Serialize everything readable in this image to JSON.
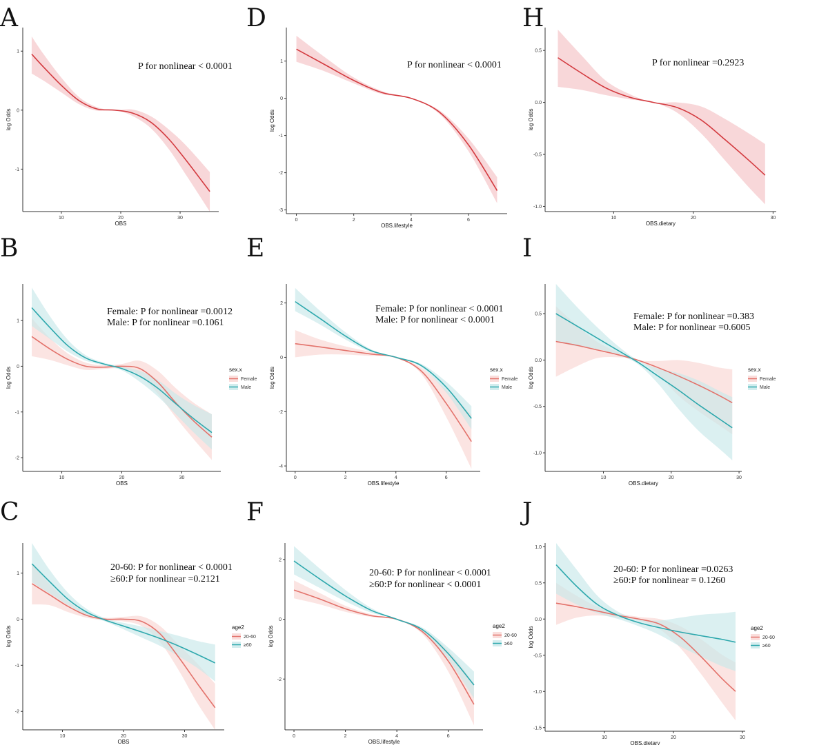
{
  "colors": {
    "overall": "#d33a3f",
    "overall_band": "#f5c2c5",
    "group1": "#e3726b",
    "group1_band": "#f9d6d3",
    "group2": "#2ea8ad",
    "group2_band": "#c8e8ea"
  },
  "chart_data": [
    {
      "id": "A",
      "letter": "A",
      "type": "line",
      "xlabel": "OBS",
      "ylabel": "log Odds",
      "xlim": [
        3.5,
        36.5
      ],
      "ylim": [
        -1.72,
        1.4
      ],
      "xticks": [
        10,
        20,
        30
      ],
      "yticks": [
        1,
        0,
        -1
      ],
      "annotations": [
        "P for nonlinear < 0.0001"
      ],
      "series": [
        {
          "color_key": "overall",
          "x": [
            5,
            7,
            10,
            13,
            16,
            19,
            22,
            25,
            28,
            31,
            35
          ],
          "y": [
            0.95,
            0.73,
            0.42,
            0.16,
            0.02,
            0.0,
            -0.05,
            -0.2,
            -0.48,
            -0.85,
            -1.38
          ],
          "lo": [
            0.62,
            0.5,
            0.3,
            0.1,
            -0.01,
            0.0,
            -0.1,
            -0.3,
            -0.65,
            -1.1,
            -1.72
          ],
          "hi": [
            1.25,
            0.95,
            0.55,
            0.22,
            0.05,
            0.0,
            0.01,
            -0.1,
            -0.32,
            -0.6,
            -1.05
          ]
        }
      ]
    },
    {
      "id": "D",
      "letter": "D",
      "type": "line",
      "xlabel": "OBS.lifestyle",
      "ylabel": "log Odds",
      "xlim": [
        -0.35,
        7.35
      ],
      "ylim": [
        -3.1,
        1.9
      ],
      "xticks": [
        0,
        2,
        4,
        6
      ],
      "yticks": [
        1,
        0,
        -1,
        -2,
        -3
      ],
      "annotations": [
        "P for nonlinear < 0.0001"
      ],
      "series": [
        {
          "color_key": "overall",
          "x": [
            0,
            1,
            2,
            3,
            4,
            5,
            6,
            7
          ],
          "y": [
            1.32,
            0.9,
            0.48,
            0.15,
            0.0,
            -0.38,
            -1.25,
            -2.48
          ],
          "lo": [
            0.98,
            0.72,
            0.4,
            0.11,
            0.0,
            -0.43,
            -1.42,
            -2.82
          ],
          "hi": [
            1.68,
            1.1,
            0.56,
            0.19,
            0.0,
            -0.33,
            -1.08,
            -2.12
          ]
        }
      ]
    },
    {
      "id": "H",
      "letter": "H",
      "type": "line",
      "xlabel": "OBS.dietary",
      "ylabel": "log Odds",
      "xlim": [
        1.4,
        30.4
      ],
      "ylim": [
        -1.05,
        0.72
      ],
      "xticks": [
        10,
        20,
        30
      ],
      "yticks": [
        0.5,
        0.0,
        -0.5,
        -1.0
      ],
      "annotations": [
        "P for nonlinear =0.2923"
      ],
      "series": [
        {
          "color_key": "overall",
          "x": [
            3,
            6,
            9,
            12,
            15,
            18,
            21,
            24,
            27,
            29
          ],
          "y": [
            0.43,
            0.28,
            0.14,
            0.05,
            0.0,
            -0.05,
            -0.17,
            -0.36,
            -0.56,
            -0.7
          ],
          "lo": [
            0.15,
            0.12,
            0.07,
            0.03,
            0.0,
            -0.1,
            -0.3,
            -0.56,
            -0.82,
            -0.98
          ],
          "hi": [
            0.7,
            0.45,
            0.21,
            0.08,
            0.0,
            0.0,
            -0.04,
            -0.16,
            -0.3,
            -0.4
          ]
        }
      ]
    },
    {
      "id": "B",
      "letter": "B",
      "type": "line",
      "xlabel": "OBS",
      "ylabel": "log Odds",
      "xlim": [
        3.5,
        36.5
      ],
      "ylim": [
        -2.3,
        1.8
      ],
      "xticks": [
        10,
        20,
        30
      ],
      "yticks": [
        1,
        0,
        -1,
        -2
      ],
      "annotations": [
        "Female: P for nonlinear =0.0012",
        "Male: P for nonlinear =0.1061"
      ],
      "legend": {
        "title": "sex.x",
        "items": [
          "Female",
          "Male"
        ],
        "color_keys": [
          "group1",
          "group2"
        ]
      },
      "series": [
        {
          "name": "Female",
          "color_key": "group1",
          "x": [
            5,
            8,
            11,
            14,
            17,
            20,
            23,
            26,
            29,
            32,
            35
          ],
          "y": [
            0.65,
            0.38,
            0.15,
            0.0,
            -0.02,
            0.0,
            -0.05,
            -0.35,
            -0.8,
            -1.2,
            -1.55
          ],
          "lo": [
            0.22,
            0.14,
            0.02,
            -0.08,
            -0.06,
            -0.05,
            -0.2,
            -0.6,
            -1.12,
            -1.6,
            -2.05
          ],
          "hi": [
            1.05,
            0.62,
            0.28,
            0.08,
            0.02,
            0.05,
            0.12,
            -0.1,
            -0.48,
            -0.8,
            -1.05
          ]
        },
        {
          "name": "Male",
          "color_key": "group2",
          "x": [
            5,
            8,
            11,
            14,
            17,
            20,
            23,
            26,
            29,
            32,
            35
          ],
          "y": [
            1.28,
            0.85,
            0.45,
            0.18,
            0.05,
            -0.05,
            -0.22,
            -0.48,
            -0.82,
            -1.15,
            -1.45
          ],
          "lo": [
            0.88,
            0.6,
            0.32,
            0.12,
            0.02,
            -0.09,
            -0.34,
            -0.66,
            -1.05,
            -1.45,
            -1.82
          ],
          "hi": [
            1.72,
            1.1,
            0.58,
            0.24,
            0.08,
            -0.01,
            -0.1,
            -0.3,
            -0.6,
            -0.85,
            -1.05
          ]
        }
      ]
    },
    {
      "id": "E",
      "letter": "E",
      "type": "line",
      "xlabel": "OBS.lifestyle",
      "ylabel": "log Odds",
      "xlim": [
        -0.35,
        7.35
      ],
      "ylim": [
        -4.2,
        2.7
      ],
      "xticks": [
        0,
        2,
        4,
        6
      ],
      "yticks": [
        2,
        0,
        -2,
        -4
      ],
      "annotations": [
        "Female: P for nonlinear < 0.0001",
        "Male: P for nonlinear < 0.0001"
      ],
      "legend": {
        "title": "sex.x",
        "items": [
          "Female",
          "Male"
        ],
        "color_keys": [
          "group1",
          "group2"
        ]
      },
      "series": [
        {
          "name": "Female",
          "color_key": "group1",
          "x": [
            0,
            1,
            2,
            3,
            4,
            5,
            6,
            7
          ],
          "y": [
            0.5,
            0.38,
            0.25,
            0.12,
            0.0,
            -0.5,
            -1.7,
            -3.1
          ],
          "lo": [
            0.0,
            0.1,
            0.1,
            0.05,
            0.0,
            -0.6,
            -2.2,
            -4.1
          ],
          "hi": [
            1.0,
            0.65,
            0.4,
            0.2,
            0.0,
            -0.38,
            -1.2,
            -2.1
          ]
        },
        {
          "name": "Male",
          "color_key": "group2",
          "x": [
            0,
            1,
            2,
            3,
            4,
            5,
            6,
            7
          ],
          "y": [
            2.05,
            1.42,
            0.78,
            0.25,
            0.0,
            -0.3,
            -1.1,
            -2.25
          ],
          "lo": [
            1.7,
            1.2,
            0.65,
            0.2,
            0.0,
            -0.36,
            -1.3,
            -2.65
          ],
          "hi": [
            2.55,
            1.7,
            0.92,
            0.3,
            0.0,
            -0.24,
            -0.9,
            -1.8
          ]
        }
      ]
    },
    {
      "id": "I",
      "letter": "I",
      "type": "line",
      "xlabel": "OBS.dietary",
      "ylabel": "log Odds",
      "xlim": [
        1.4,
        30.4
      ],
      "ylim": [
        -1.2,
        0.82
      ],
      "xticks": [
        10,
        20,
        30
      ],
      "yticks": [
        0.5,
        0.0,
        -0.5,
        -1.0
      ],
      "annotations": [
        "Female: P for nonlinear =0.383",
        "Male: P for nonlinear =0.6005"
      ],
      "legend": {
        "title": "sex.x",
        "items": [
          "Female",
          "Male"
        ],
        "color_keys": [
          "group1",
          "group2"
        ]
      },
      "series": [
        {
          "name": "Female",
          "color_key": "group1",
          "x": [
            3,
            6,
            9,
            12,
            15,
            18,
            21,
            24,
            27,
            29
          ],
          "y": [
            0.2,
            0.16,
            0.11,
            0.06,
            0.0,
            -0.08,
            -0.17,
            -0.27,
            -0.38,
            -0.46
          ],
          "lo": [
            -0.18,
            -0.07,
            0.02,
            0.03,
            0.0,
            -0.15,
            -0.38,
            -0.55,
            -0.7,
            -0.8
          ],
          "hi": [
            0.58,
            0.38,
            0.2,
            0.09,
            0.0,
            -0.01,
            0.0,
            -0.03,
            -0.08,
            -0.1
          ]
        },
        {
          "name": "Male",
          "color_key": "group2",
          "x": [
            3,
            6,
            9,
            12,
            15,
            18,
            21,
            24,
            27,
            29
          ],
          "y": [
            0.5,
            0.37,
            0.24,
            0.11,
            -0.02,
            -0.17,
            -0.32,
            -0.48,
            -0.63,
            -0.73
          ],
          "lo": [
            0.2,
            0.15,
            0.12,
            0.06,
            -0.04,
            -0.25,
            -0.52,
            -0.76,
            -0.95,
            -1.08
          ],
          "hi": [
            0.82,
            0.58,
            0.36,
            0.16,
            0.0,
            -0.09,
            -0.14,
            -0.22,
            -0.33,
            -0.4
          ]
        }
      ]
    },
    {
      "id": "C",
      "letter": "C",
      "type": "line",
      "xlabel": "OBS",
      "ylabel": "log Odds",
      "xlim": [
        3.5,
        36.5
      ],
      "ylim": [
        -2.4,
        1.65
      ],
      "xticks": [
        10,
        20,
        30
      ],
      "yticks": [
        1,
        0,
        -1,
        -2
      ],
      "annotations": [
        "20-60: P for nonlinear < 0.0001",
        "≥60:P for nonlinear =0.2121"
      ],
      "legend": {
        "title": "age2",
        "items": [
          "20-60",
          "≥60"
        ],
        "color_keys": [
          "group1",
          "group2"
        ]
      },
      "series": [
        {
          "name": "20-60",
          "color_key": "group1",
          "x": [
            5,
            8,
            11,
            14,
            17,
            20,
            23,
            26,
            29,
            32,
            35
          ],
          "y": [
            0.77,
            0.52,
            0.27,
            0.08,
            0.0,
            0.0,
            -0.05,
            -0.32,
            -0.82,
            -1.38,
            -1.92
          ],
          "lo": [
            0.32,
            0.3,
            0.15,
            0.03,
            -0.03,
            -0.05,
            -0.15,
            -0.5,
            -1.1,
            -1.8,
            -2.4
          ],
          "hi": [
            1.2,
            0.75,
            0.38,
            0.13,
            0.03,
            0.05,
            0.06,
            -0.15,
            -0.55,
            -0.95,
            -1.4
          ]
        },
        {
          "name": "≥60",
          "color_key": "group2",
          "x": [
            5,
            8,
            11,
            14,
            17,
            20,
            23,
            26,
            29,
            32,
            35
          ],
          "y": [
            1.2,
            0.8,
            0.42,
            0.15,
            -0.02,
            -0.15,
            -0.28,
            -0.42,
            -0.58,
            -0.76,
            -0.95
          ],
          "lo": [
            0.8,
            0.55,
            0.3,
            0.08,
            -0.05,
            -0.22,
            -0.4,
            -0.58,
            -0.8,
            -1.05,
            -1.35
          ],
          "hi": [
            1.65,
            1.05,
            0.56,
            0.22,
            0.02,
            -0.08,
            -0.16,
            -0.26,
            -0.36,
            -0.47,
            -0.55
          ]
        }
      ]
    },
    {
      "id": "F",
      "letter": "F",
      "type": "line",
      "xlabel": "OBS.lifestyle",
      "ylabel": "log Odds",
      "xlim": [
        -0.35,
        7.35
      ],
      "ylim": [
        -3.7,
        2.55
      ],
      "xticks": [
        0,
        2,
        4,
        6
      ],
      "yticks": [
        2,
        0,
        -2
      ],
      "annotations": [
        "20-60: P for nonlinear < 0.0001",
        "≥60:P for nonlinear < 0.0001"
      ],
      "legend": {
        "title": "age2",
        "items": [
          "20-60",
          "≥60"
        ],
        "color_keys": [
          "group1",
          "group2"
        ]
      },
      "series": [
        {
          "name": "20-60",
          "color_key": "group1",
          "x": [
            0,
            1,
            2,
            3,
            4,
            5,
            6,
            7
          ],
          "y": [
            0.98,
            0.68,
            0.35,
            0.12,
            0.0,
            -0.42,
            -1.4,
            -2.85
          ],
          "lo": [
            0.7,
            0.5,
            0.25,
            0.08,
            0.0,
            -0.5,
            -1.75,
            -3.55
          ],
          "hi": [
            1.3,
            0.88,
            0.45,
            0.17,
            0.0,
            -0.34,
            -1.05,
            -2.15
          ]
        },
        {
          "name": "≥60",
          "color_key": "group2",
          "x": [
            0,
            1,
            2,
            3,
            4,
            5,
            6,
            7
          ],
          "y": [
            1.95,
            1.35,
            0.78,
            0.3,
            0.0,
            -0.35,
            -1.15,
            -2.2
          ],
          "lo": [
            1.5,
            1.05,
            0.6,
            0.22,
            0.0,
            -0.42,
            -1.35,
            -2.65
          ],
          "hi": [
            2.45,
            1.7,
            0.98,
            0.38,
            0.0,
            -0.28,
            -0.95,
            -1.75
          ]
        }
      ]
    },
    {
      "id": "J",
      "letter": "J",
      "type": "line",
      "xlabel": "OBS.dietary",
      "ylabel": "log Odds",
      "xlim": [
        1.4,
        30.4
      ],
      "ylim": [
        -1.55,
        1.05
      ],
      "xticks": [
        10,
        20,
        30
      ],
      "yticks": [
        1.0,
        0.5,
        0.0,
        -0.5,
        -1.0,
        -1.5
      ],
      "annotations": [
        "20-60: P for nonlinear =0.0263",
        "≥60:P for nonlinear = 0.1260"
      ],
      "legend": {
        "title": "age2",
        "items": [
          "20-60",
          "≥60"
        ],
        "color_keys": [
          "group1",
          "group2"
        ]
      },
      "series": [
        {
          "name": "20-60",
          "color_key": "group1",
          "x": [
            3,
            6,
            9,
            12,
            15,
            18,
            21,
            24,
            27,
            29
          ],
          "y": [
            0.22,
            0.17,
            0.11,
            0.05,
            0.0,
            -0.07,
            -0.25,
            -0.52,
            -0.82,
            -1.0
          ],
          "lo": [
            -0.08,
            0.02,
            0.05,
            0.02,
            -0.02,
            -0.14,
            -0.4,
            -0.76,
            -1.15,
            -1.4
          ],
          "hi": [
            0.5,
            0.32,
            0.17,
            0.08,
            0.03,
            0.0,
            -0.1,
            -0.28,
            -0.49,
            -0.6
          ]
        },
        {
          "name": "≥60",
          "color_key": "group2",
          "x": [
            3,
            6,
            9,
            12,
            15,
            18,
            21,
            24,
            27,
            29
          ],
          "y": [
            0.75,
            0.45,
            0.2,
            0.05,
            -0.05,
            -0.12,
            -0.18,
            -0.23,
            -0.28,
            -0.32
          ],
          "lo": [
            0.35,
            0.2,
            0.08,
            0.0,
            -0.1,
            -0.22,
            -0.38,
            -0.52,
            -0.65,
            -0.72
          ],
          "hi": [
            1.05,
            0.68,
            0.32,
            0.1,
            0.0,
            -0.02,
            0.02,
            0.06,
            0.08,
            0.1
          ]
        }
      ]
    }
  ]
}
